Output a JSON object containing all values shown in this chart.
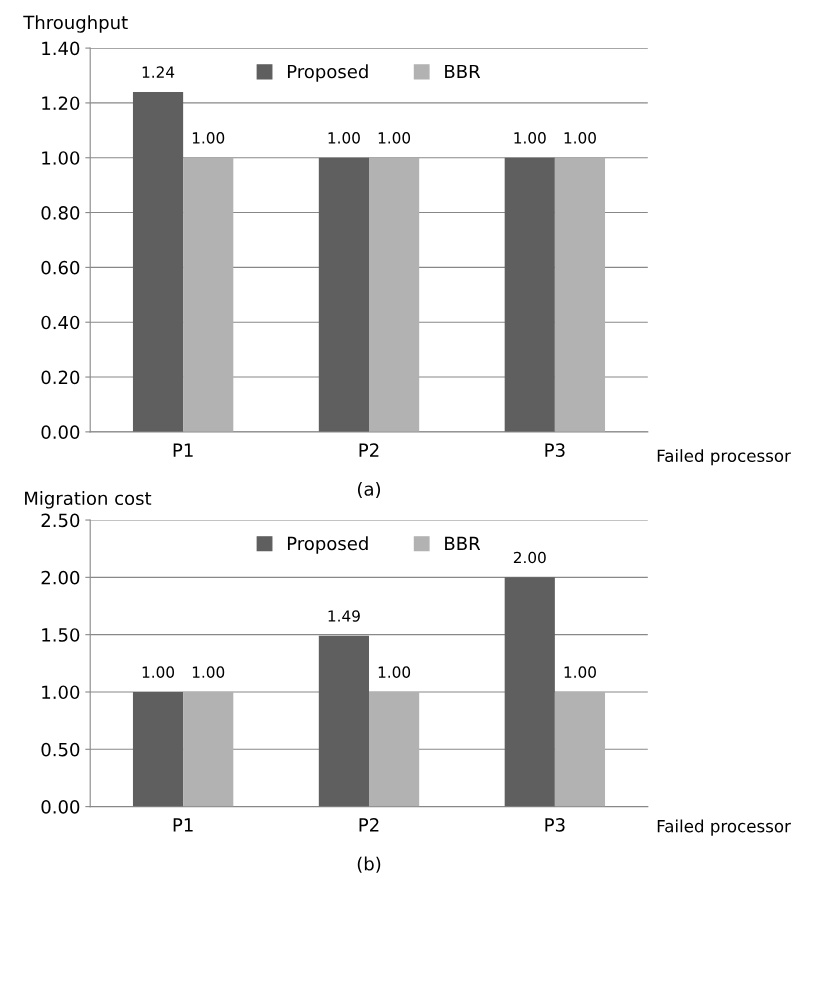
{
  "chart_data": [
    {
      "type": "bar",
      "ylabel": "Throughput",
      "xlabel": "Failed processor",
      "annotations": [
        "(a)"
      ],
      "categories": [
        "P1",
        "P2",
        "P3"
      ],
      "series": [
        {
          "name": "Proposed",
          "color": "#5f5f5f",
          "values": [
            1.24,
            1.0,
            1.0
          ]
        },
        {
          "name": "BBR",
          "color": "#b2b2b2",
          "values": [
            1.0,
            1.0,
            1.0
          ]
        }
      ],
      "ylim": [
        0,
        1.4
      ],
      "yticks": [
        {
          "value": 0,
          "label": "0.00"
        },
        {
          "value": 0.2,
          "label": "0.20"
        },
        {
          "value": 0.4,
          "label": "0.40"
        },
        {
          "value": 0.6,
          "label": "0.60"
        },
        {
          "value": 0.8,
          "label": "0.80"
        },
        {
          "value": 1.0,
          "label": "1.00"
        },
        {
          "value": 1.2,
          "label": "1.20"
        },
        {
          "value": 1.4,
          "label": "1.40"
        }
      ],
      "grid": "y",
      "legend": "top",
      "value_labels": [
        [
          "1.24",
          "1.00",
          "1.00"
        ],
        [
          "1.00",
          "1.00",
          "1.00"
        ]
      ]
    },
    {
      "type": "bar",
      "ylabel": "Migration cost",
      "xlabel": "Failed processor",
      "annotations": [
        "(b)"
      ],
      "categories": [
        "P1",
        "P2",
        "P3"
      ],
      "series": [
        {
          "name": "Proposed",
          "color": "#5f5f5f",
          "values": [
            1.0,
            1.49,
            2.0
          ]
        },
        {
          "name": "BBR",
          "color": "#b2b2b2",
          "values": [
            1.0,
            1.0,
            1.0
          ]
        }
      ],
      "ylim": [
        0,
        2.5
      ],
      "yticks": [
        {
          "value": 0,
          "label": "0.00"
        },
        {
          "value": 0.5,
          "label": "0.50"
        },
        {
          "value": 1.0,
          "label": "1.00"
        },
        {
          "value": 1.5,
          "label": "1.50"
        },
        {
          "value": 2.0,
          "label": "2.00"
        },
        {
          "value": 2.5,
          "label": "2.50"
        }
      ],
      "grid": "y",
      "legend": "top",
      "value_labels": [
        [
          "1.00",
          "1.49",
          "2.00"
        ],
        [
          "1.00",
          "1.00",
          "1.00"
        ]
      ]
    }
  ]
}
